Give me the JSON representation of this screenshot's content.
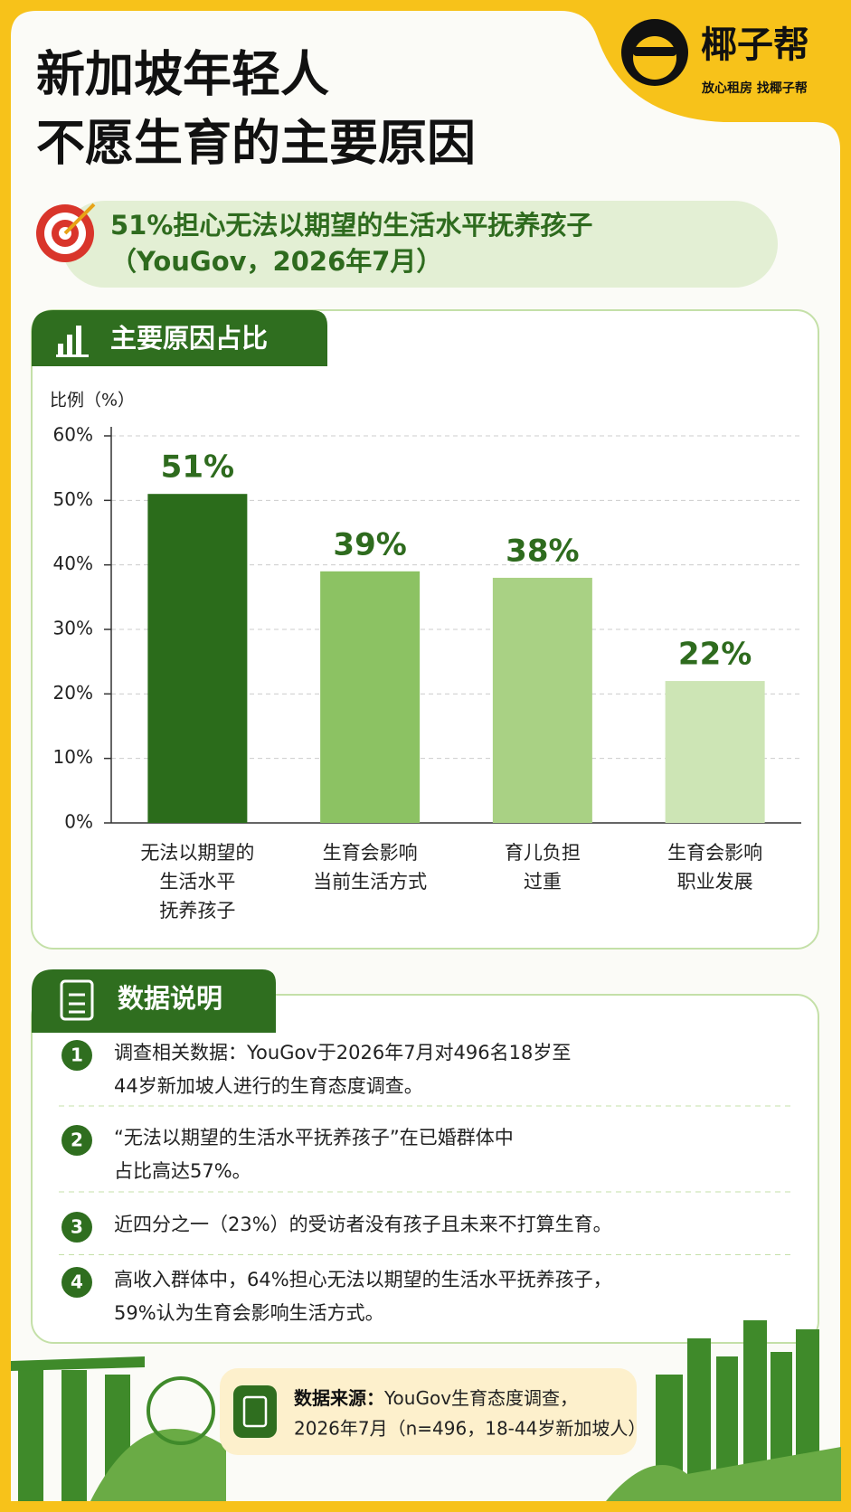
{
  "header": {
    "title_lines": [
      "新加坡年轻人",
      "不愿生育的主要原因"
    ],
    "brand": "椰子帮",
    "slogan": "放心租房 找椰子帮"
  },
  "highlight": {
    "lines": [
      "51%担心无法以期望的生活水平抚养孩子",
      "（YouGov，2026年7月）"
    ]
  },
  "chart_data": {
    "type": "bar",
    "title": "主要原因占比",
    "y_label": "比例（%）",
    "categories": [
      [
        "无法以期望的",
        "生活水平",
        "抚养孩子"
      ],
      [
        "生育会影响",
        "当前生活方式"
      ],
      [
        "育儿负担",
        "过重"
      ],
      [
        "生育会影响",
        "职业发展"
      ]
    ],
    "values": [
      51,
      39,
      38,
      22
    ],
    "value_labels": [
      "51%",
      "39%",
      "38%",
      "22%"
    ],
    "colors": [
      "#2b6c1b",
      "#8cc263",
      "#a9d184",
      "#cde5b5"
    ],
    "ylim": [
      0,
      60
    ],
    "yticks": [
      {
        "value": 0,
        "label": "0%"
      },
      {
        "value": 10,
        "label": "10%"
      },
      {
        "value": 20,
        "label": "20%"
      },
      {
        "value": 30,
        "label": "30%"
      },
      {
        "value": 40,
        "label": "40%"
      },
      {
        "value": 50,
        "label": "50%"
      },
      {
        "value": 60,
        "label": "60%"
      }
    ],
    "grid": true
  },
  "notes": {
    "title": "数据说明",
    "items": [
      {
        "num": "1",
        "lines": [
          "调查相关数据：YouGov于2026年7月对496名18岁至",
          "44岁新加坡人进行的生育态度调查。"
        ]
      },
      {
        "num": "2",
        "lines": [
          "“无法以期望的生活水平抚养孩子”在已婚群体中",
          "占比高达57%。"
        ]
      },
      {
        "num": "3",
        "lines": [
          "近四分之一（23%）的受访者没有孩子且未来不打算生育。"
        ]
      },
      {
        "num": "4",
        "lines": [
          "高收入群体中，64%担心无法以期望的生活水平抚养孩子，",
          "59%认为生育会影响生活方式。"
        ]
      }
    ]
  },
  "source": {
    "label": "数据来源：",
    "lines": [
      "YouGov生育态度调查，",
      "2026年7月（n=496，18-44岁新加坡人）"
    ]
  }
}
